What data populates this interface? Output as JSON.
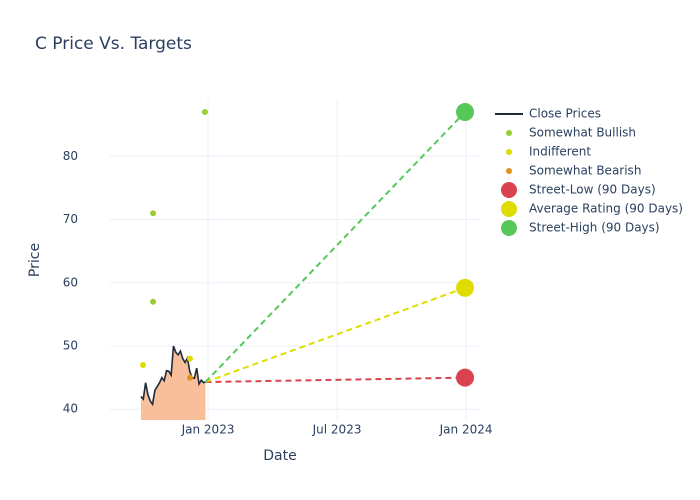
{
  "chart_data": {
    "type": "line",
    "title": "C Price Vs. Targets",
    "x_label": "Date",
    "y_label": "Price",
    "xlim": [
      2022.62,
      2024.054
    ],
    "ylim": [
      38.3,
      88.9
    ],
    "xticks": [
      {
        "value": 2023,
        "label": "Jan 2023"
      },
      {
        "value": 2023.5,
        "label": "Jul 2023"
      },
      {
        "value": 2024,
        "label": "Jan 2024"
      }
    ],
    "yticks": [
      40,
      50,
      60,
      70,
      80
    ],
    "grid": true,
    "series": [
      {
        "name": "Close Prices",
        "type": "line",
        "color": "#1f2a3a",
        "fill_color": "#f9bf9b",
        "x": [
          2022.74,
          2022.749,
          2022.758,
          2022.767,
          2022.776,
          2022.785,
          2022.794,
          2022.803,
          2022.812,
          2022.821,
          2022.83,
          2022.839,
          2022.848,
          2022.857,
          2022.866,
          2022.875,
          2022.884,
          2022.893,
          2022.902,
          2022.911,
          2022.92,
          2022.929,
          2022.938,
          2022.947,
          2022.956,
          2022.965,
          2022.974,
          2022.983,
          2022.99
        ],
        "values": [
          42,
          41.6,
          44.2,
          42.3,
          41.3,
          40.8,
          43,
          43.6,
          44.2,
          45,
          44.5,
          46.1,
          46,
          45.4,
          50,
          49,
          48.6,
          49.2,
          48,
          47.4,
          48.1,
          46,
          45,
          44.9,
          46.5,
          44,
          44.6,
          44.2,
          44.3
        ]
      },
      {
        "name": "Somewhat Bullish",
        "type": "scatter",
        "color": "#9acd32",
        "x": [
          2022.787,
          2022.787,
          2022.988
        ],
        "values": [
          71,
          57,
          87
        ]
      },
      {
        "name": "Indifferent",
        "type": "scatter",
        "color": "#e0dc00",
        "x": [
          2022.748,
          2022.93
        ],
        "values": [
          47,
          48
        ]
      },
      {
        "name": "Somewhat Bearish",
        "type": "scatter",
        "color": "#e0921a",
        "x": [
          2022.93
        ],
        "values": [
          45
        ]
      },
      {
        "name": "Street-Low (90 Days)",
        "type": "target",
        "color": "#d9434f",
        "x": [
          2023.996
        ],
        "values": [
          45
        ]
      },
      {
        "name": "Average Rating (90 Days)",
        "type": "target",
        "color": "#dfdd00",
        "x": [
          2023.996
        ],
        "values": [
          59.2
        ]
      },
      {
        "name": "Street-High (90 Days)",
        "type": "target",
        "color": "#56c85a",
        "x": [
          2023.996
        ],
        "values": [
          87
        ]
      }
    ]
  }
}
